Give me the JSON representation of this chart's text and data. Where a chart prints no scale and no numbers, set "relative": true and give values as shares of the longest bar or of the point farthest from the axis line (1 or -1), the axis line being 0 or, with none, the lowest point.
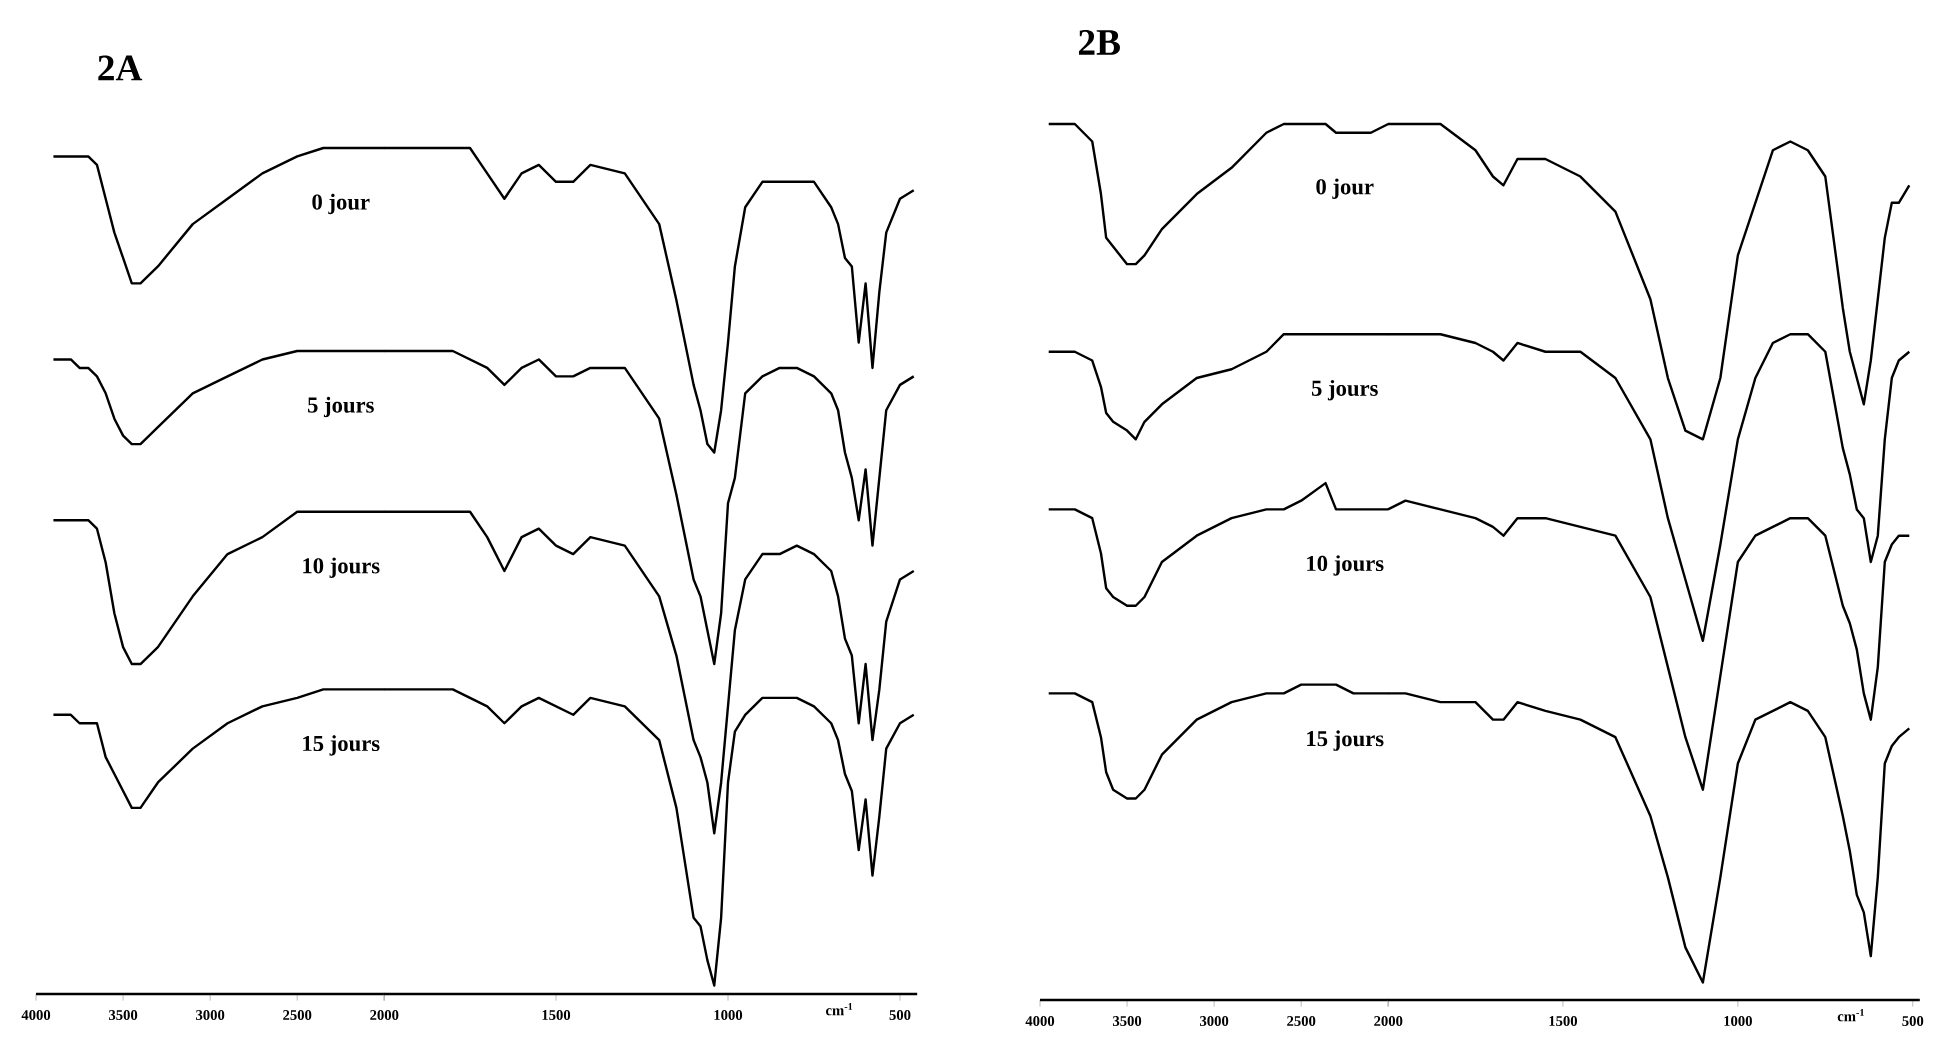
{
  "chart_data": [
    {
      "type": "line",
      "title": "2A",
      "relative": true,
      "xlim": [
        4000,
        2000
      ],
      "xticks": [
        4000,
        3500,
        3000,
        2500,
        2000
      ],
      "x": [
        3900,
        3800,
        3750,
        3700,
        3650,
        3600,
        3550,
        3500,
        3450,
        3400,
        3300,
        3100,
        2900,
        2700,
        2500,
        2350,
        2300,
        2150,
        2000
      ],
      "series": [
        {
          "name": "0 jour",
          "color": "#000000",
          "values": [
            0.99,
            0.99,
            0.99,
            0.99,
            0.98,
            0.94,
            0.9,
            0.87,
            0.84,
            0.84,
            0.86,
            0.91,
            0.94,
            0.97,
            0.99,
            1.0,
            1.0,
            1.0,
            1.0
          ]
        },
        {
          "name": "5 jours",
          "color": "#000000",
          "values": [
            0.75,
            0.75,
            0.74,
            0.74,
            0.73,
            0.71,
            0.68,
            0.66,
            0.65,
            0.65,
            0.67,
            0.71,
            0.73,
            0.75,
            0.76,
            0.76,
            0.76,
            0.76,
            0.76
          ]
        },
        {
          "name": "10 jours",
          "color": "#000000",
          "values": [
            0.56,
            0.56,
            0.56,
            0.56,
            0.55,
            0.51,
            0.45,
            0.41,
            0.39,
            0.39,
            0.41,
            0.47,
            0.52,
            0.54,
            0.57,
            0.57,
            0.57,
            0.57,
            0.57
          ]
        },
        {
          "name": "15 jours",
          "color": "#000000",
          "values": [
            0.33,
            0.33,
            0.32,
            0.32,
            0.32,
            0.28,
            0.26,
            0.24,
            0.22,
            0.22,
            0.25,
            0.29,
            0.32,
            0.34,
            0.35,
            0.36,
            0.36,
            0.36,
            0.36
          ]
        }
      ]
    },
    {
      "type": "line",
      "xlabel": "cm$^{-1}$",
      "relative": true,
      "xlim": [
        2000,
        450
      ],
      "xticks": [
        {
          "value": 2000,
          "label": null
        },
        1500,
        1000,
        500
      ],
      "x": [
        2000,
        1950,
        1800,
        1750,
        1700,
        1650,
        1600,
        1550,
        1500,
        1450,
        1400,
        1300,
        1200,
        1150,
        1100,
        1080,
        1060,
        1040,
        1020,
        1000,
        980,
        950,
        900,
        850,
        800,
        750,
        700,
        680,
        660,
        640,
        620,
        600,
        580,
        560,
        540,
        500,
        460
      ],
      "series": [
        {
          "color": "#000000",
          "values": [
            1.0,
            1.0,
            1.0,
            1.0,
            0.97,
            0.94,
            0.97,
            0.98,
            0.96,
            0.96,
            0.98,
            0.97,
            0.91,
            0.82,
            0.72,
            0.69,
            0.65,
            0.64,
            0.69,
            0.77,
            0.86,
            0.93,
            0.96,
            0.96,
            0.96,
            0.96,
            0.93,
            0.91,
            0.87,
            0.86,
            0.77,
            0.84,
            0.74,
            0.83,
            0.9,
            0.94,
            0.95
          ]
        },
        {
          "color": "#000000",
          "values": [
            0.76,
            0.76,
            0.76,
            0.75,
            0.74,
            0.72,
            0.74,
            0.75,
            0.73,
            0.73,
            0.74,
            0.74,
            0.68,
            0.59,
            0.49,
            0.47,
            0.43,
            0.39,
            0.45,
            0.58,
            0.61,
            0.71,
            0.73,
            0.74,
            0.74,
            0.73,
            0.71,
            0.69,
            0.64,
            0.61,
            0.56,
            0.62,
            0.53,
            0.61,
            0.69,
            0.72,
            0.73
          ]
        },
        {
          "color": "#000000",
          "values": [
            0.57,
            0.57,
            0.57,
            0.57,
            0.54,
            0.5,
            0.54,
            0.55,
            0.53,
            0.52,
            0.54,
            0.53,
            0.47,
            0.4,
            0.3,
            0.28,
            0.25,
            0.19,
            0.25,
            0.34,
            0.43,
            0.49,
            0.52,
            0.52,
            0.53,
            0.52,
            0.5,
            0.47,
            0.42,
            0.4,
            0.32,
            0.39,
            0.3,
            0.36,
            0.44,
            0.49,
            0.5
          ]
        },
        {
          "color": "#000000",
          "values": [
            0.36,
            0.36,
            0.36,
            0.35,
            0.34,
            0.32,
            0.34,
            0.35,
            0.34,
            0.33,
            0.35,
            0.34,
            0.3,
            0.22,
            0.09,
            0.08,
            0.04,
            0.01,
            0.09,
            0.25,
            0.31,
            0.33,
            0.35,
            0.35,
            0.35,
            0.34,
            0.32,
            0.3,
            0.26,
            0.24,
            0.17,
            0.23,
            0.14,
            0.21,
            0.29,
            0.32,
            0.33
          ]
        }
      ]
    },
    {
      "type": "line",
      "title": "2B",
      "relative": true,
      "xlim": [
        4000,
        2000
      ],
      "xticks": [
        4000,
        3500,
        3000,
        2500,
        2000
      ],
      "x": [
        3950,
        3800,
        3700,
        3650,
        3620,
        3580,
        3500,
        3450,
        3400,
        3300,
        3100,
        2900,
        2700,
        2600,
        2500,
        2360,
        2300,
        2200,
        2100,
        2000
      ],
      "series": [
        {
          "name": "0 jour",
          "color": "#000000",
          "values": [
            1.0,
            1.0,
            0.98,
            0.92,
            0.87,
            0.86,
            0.84,
            0.84,
            0.85,
            0.88,
            0.92,
            0.95,
            0.99,
            1.0,
            1.0,
            1.0,
            0.99,
            0.99,
            0.99,
            1.0
          ]
        },
        {
          "name": "5 jours",
          "color": "#000000",
          "values": [
            0.74,
            0.74,
            0.73,
            0.7,
            0.67,
            0.66,
            0.65,
            0.64,
            0.66,
            0.68,
            0.71,
            0.72,
            0.74,
            0.76,
            0.76,
            0.76,
            0.76,
            0.76,
            0.76,
            0.76
          ]
        },
        {
          "name": "10 jours",
          "color": "#000000",
          "values": [
            0.56,
            0.56,
            0.55,
            0.51,
            0.47,
            0.46,
            0.45,
            0.45,
            0.46,
            0.5,
            0.53,
            0.55,
            0.56,
            0.56,
            0.57,
            0.59,
            0.56,
            0.56,
            0.56,
            0.56
          ]
        },
        {
          "name": "15 jours",
          "color": "#000000",
          "values": [
            0.35,
            0.35,
            0.34,
            0.3,
            0.26,
            0.24,
            0.23,
            0.23,
            0.24,
            0.28,
            0.32,
            0.34,
            0.35,
            0.35,
            0.36,
            0.36,
            0.36,
            0.35,
            0.35,
            0.35
          ]
        }
      ]
    },
    {
      "type": "line",
      "xlabel": "cm$^{-1}$",
      "relative": true,
      "xlim": [
        2000,
        480
      ],
      "xticks": [
        {
          "value": 2000,
          "label": null
        },
        1500,
        1000,
        500
      ],
      "x": [
        2000,
        1950,
        1850,
        1750,
        1700,
        1670,
        1630,
        1550,
        1450,
        1350,
        1250,
        1200,
        1150,
        1100,
        1050,
        1000,
        950,
        900,
        850,
        800,
        750,
        700,
        680,
        660,
        640,
        620,
        600,
        580,
        560,
        540,
        510
      ],
      "series": [
        {
          "color": "#000000",
          "values": [
            1.0,
            1.0,
            1.0,
            0.97,
            0.94,
            0.93,
            0.96,
            0.96,
            0.94,
            0.9,
            0.8,
            0.71,
            0.65,
            0.64,
            0.71,
            0.85,
            0.91,
            0.97,
            0.98,
            0.97,
            0.94,
            0.79,
            0.74,
            0.71,
            0.68,
            0.73,
            0.8,
            0.87,
            0.91,
            0.91,
            0.93
          ]
        },
        {
          "color": "#000000",
          "values": [
            0.76,
            0.76,
            0.76,
            0.75,
            0.74,
            0.73,
            0.75,
            0.74,
            0.74,
            0.71,
            0.64,
            0.55,
            0.48,
            0.41,
            0.52,
            0.64,
            0.71,
            0.75,
            0.76,
            0.76,
            0.74,
            0.63,
            0.6,
            0.56,
            0.55,
            0.5,
            0.53,
            0.64,
            0.71,
            0.73,
            0.74
          ]
        },
        {
          "color": "#000000",
          "values": [
            0.56,
            0.57,
            0.56,
            0.55,
            0.54,
            0.53,
            0.55,
            0.55,
            0.54,
            0.53,
            0.46,
            0.38,
            0.3,
            0.24,
            0.37,
            0.5,
            0.53,
            0.54,
            0.55,
            0.55,
            0.53,
            0.45,
            0.43,
            0.4,
            0.35,
            0.32,
            0.38,
            0.5,
            0.52,
            0.53,
            0.53
          ]
        },
        {
          "color": "#000000",
          "values": [
            0.35,
            0.35,
            0.34,
            0.34,
            0.32,
            0.32,
            0.34,
            0.33,
            0.32,
            0.3,
            0.21,
            0.14,
            0.06,
            0.02,
            0.14,
            0.27,
            0.32,
            0.33,
            0.34,
            0.33,
            0.3,
            0.21,
            0.17,
            0.12,
            0.1,
            0.05,
            0.14,
            0.27,
            0.29,
            0.3,
            0.31
          ]
        }
      ]
    }
  ]
}
